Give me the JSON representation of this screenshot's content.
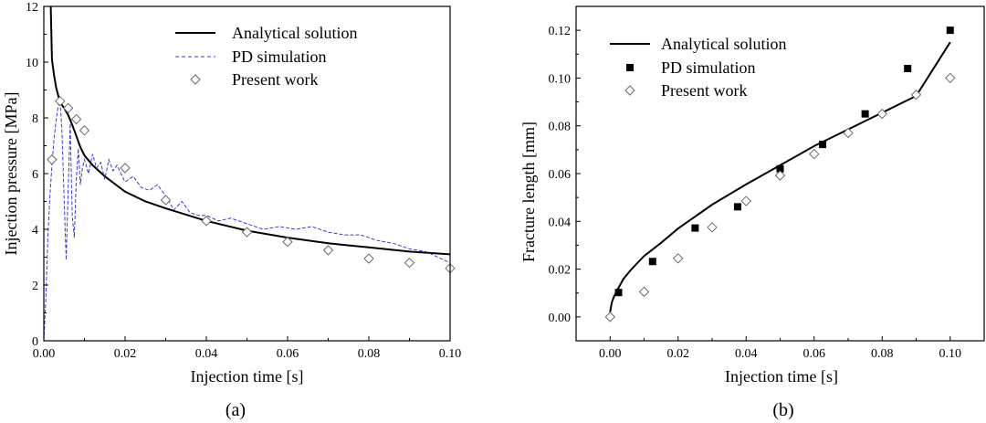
{
  "chart_data": [
    {
      "type": "line",
      "caption": "(a)",
      "xlabel": "Injection time [s]",
      "ylabel": "Injection pressure [MPa]",
      "xlim": [
        0,
        0.1
      ],
      "ylim": [
        0,
        12
      ],
      "xticks": [
        "0.00",
        "0.02",
        "0.04",
        "0.06",
        "0.08",
        "0.10"
      ],
      "yticks": [
        "0",
        "2",
        "4",
        "6",
        "8",
        "10",
        "12"
      ],
      "legend_position": "top-right",
      "series": [
        {
          "name": "Analytical solution",
          "style": "solid",
          "color": "#000000",
          "x": [
            0.0017,
            0.002,
            0.0025,
            0.003,
            0.004,
            0.005,
            0.006,
            0.007,
            0.008,
            0.009,
            0.01,
            0.012,
            0.015,
            0.02,
            0.025,
            0.03,
            0.04,
            0.05,
            0.06,
            0.07,
            0.08,
            0.09,
            0.1
          ],
          "y": [
            12.0,
            10.1,
            9.55,
            9.1,
            8.55,
            8.35,
            8.1,
            7.75,
            7.35,
            6.95,
            6.65,
            6.3,
            5.9,
            5.35,
            5.0,
            4.75,
            4.3,
            3.95,
            3.7,
            3.5,
            3.35,
            3.2,
            3.1
          ]
        },
        {
          "name": "PD simulation",
          "style": "dashed",
          "color": "#3b3bd6",
          "x": [
            0.0,
            0.0005,
            0.001,
            0.0015,
            0.002,
            0.0025,
            0.003,
            0.0035,
            0.004,
            0.0045,
            0.005,
            0.0055,
            0.006,
            0.0065,
            0.007,
            0.0075,
            0.008,
            0.0085,
            0.009,
            0.0095,
            0.01,
            0.011,
            0.012,
            0.013,
            0.014,
            0.015,
            0.016,
            0.017,
            0.018,
            0.019,
            0.02,
            0.022,
            0.024,
            0.026,
            0.028,
            0.03,
            0.032,
            0.034,
            0.036,
            0.038,
            0.04,
            0.043,
            0.046,
            0.05,
            0.054,
            0.058,
            0.062,
            0.066,
            0.07,
            0.074,
            0.078,
            0.082,
            0.086,
            0.09,
            0.094,
            0.097,
            0.1
          ],
          "y": [
            0.0,
            1.5,
            3.8,
            5.2,
            6.3,
            7.2,
            7.9,
            8.4,
            8.7,
            7.4,
            5.0,
            2.9,
            5.5,
            7.8,
            4.5,
            3.7,
            5.8,
            6.9,
            5.6,
            6.2,
            6.5,
            6.0,
            6.7,
            6.2,
            6.4,
            5.8,
            6.5,
            6.1,
            6.3,
            6.0,
            5.7,
            5.9,
            5.5,
            5.4,
            5.6,
            5.2,
            4.7,
            5.0,
            4.6,
            4.5,
            4.5,
            4.3,
            4.4,
            4.2,
            4.0,
            4.1,
            4.0,
            4.1,
            3.9,
            3.8,
            3.8,
            3.6,
            3.5,
            3.3,
            3.2,
            3.0,
            2.8
          ]
        },
        {
          "name": "Present work",
          "style": "diamond-open",
          "color": "#6a6a6a",
          "x": [
            0.002,
            0.004,
            0.006,
            0.008,
            0.01,
            0.02,
            0.03,
            0.04,
            0.05,
            0.06,
            0.07,
            0.08,
            0.09,
            0.1
          ],
          "y": [
            6.5,
            8.6,
            8.35,
            7.95,
            7.55,
            6.2,
            5.05,
            4.3,
            3.9,
            3.55,
            3.25,
            2.95,
            2.8,
            2.6
          ]
        }
      ]
    },
    {
      "type": "line",
      "caption": "(b)",
      "xlabel": "Injection time [s]",
      "ylabel": "Fracture length [mm]",
      "xlim": [
        -0.01,
        0.11
      ],
      "ylim": [
        -0.01,
        0.13
      ],
      "xticks": [
        "0.00",
        "0.02",
        "0.04",
        "0.06",
        "0.08",
        "0.10"
      ],
      "yticks": [
        "0.00",
        "0.02",
        "0.04",
        "0.06",
        "0.08",
        "0.10",
        "0.12"
      ],
      "legend_position": "top-left",
      "series": [
        {
          "name": "Analytical solution",
          "style": "solid",
          "color": "#000000",
          "x": [
            0.0,
            0.0005,
            0.001,
            0.002,
            0.004,
            0.006,
            0.008,
            0.01,
            0.015,
            0.02,
            0.03,
            0.04,
            0.05,
            0.06,
            0.07,
            0.08,
            0.09,
            0.1
          ],
          "y": [
            0.002,
            0.006,
            0.008,
            0.011,
            0.016,
            0.0195,
            0.0225,
            0.0255,
            0.031,
            0.037,
            0.047,
            0.0555,
            0.0635,
            0.0715,
            0.0785,
            0.0855,
            0.0925,
            0.115
          ]
        },
        {
          "name": "PD simulation",
          "style": "square-filled",
          "color": "#000000",
          "x": [
            0.0025,
            0.0125,
            0.025,
            0.0375,
            0.05,
            0.0625,
            0.075,
            0.0875,
            0.1
          ],
          "y": [
            0.0102,
            0.0232,
            0.0372,
            0.0461,
            0.062,
            0.0722,
            0.085,
            0.104,
            0.12
          ]
        },
        {
          "name": "Present work",
          "style": "diamond-open",
          "color": "#6a6a6a",
          "x": [
            0.0,
            0.01,
            0.02,
            0.03,
            0.04,
            0.05,
            0.06,
            0.07,
            0.08,
            0.09,
            0.1
          ],
          "y": [
            0.0,
            0.0105,
            0.0245,
            0.0375,
            0.0485,
            0.0592,
            0.0682,
            0.077,
            0.085,
            0.093,
            0.1
          ]
        }
      ]
    }
  ]
}
